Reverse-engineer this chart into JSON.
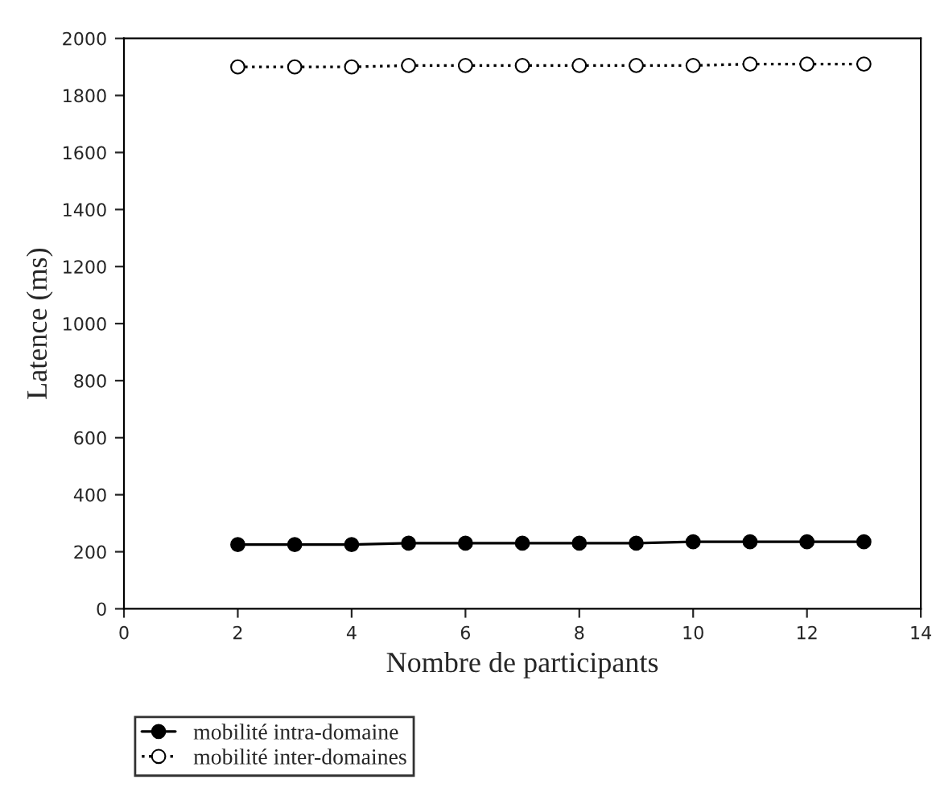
{
  "chart_data": {
    "type": "line",
    "xlabel": "Nombre de participants",
    "ylabel": "Latence (ms)",
    "x": [
      2,
      3,
      4,
      5,
      6,
      7,
      8,
      9,
      10,
      11,
      12,
      13
    ],
    "series": [
      {
        "name": "mobilité intra-domaine",
        "color": "#000000",
        "marker": "circle",
        "line_style": "solid",
        "values": [
          225,
          225,
          225,
          230,
          230,
          230,
          230,
          230,
          235,
          235,
          235,
          235
        ]
      },
      {
        "name": "mobilité inter-domaines",
        "color": "#000000",
        "marker": "circle",
        "line_style": "dotted",
        "values": [
          1900,
          1900,
          1900,
          1905,
          1905,
          1905,
          1905,
          1905,
          1905,
          1910,
          1910,
          1910
        ]
      }
    ],
    "xlim": [
      0,
      14
    ],
    "xticks": [
      0,
      2,
      4,
      6,
      8,
      10,
      12,
      14
    ],
    "ylim": [
      0,
      2000
    ],
    "yticks": [
      0,
      200,
      400,
      600,
      800,
      1000,
      1200,
      1400,
      1600,
      1800,
      2000
    ],
    "grid": false,
    "legend": "bottom left"
  }
}
